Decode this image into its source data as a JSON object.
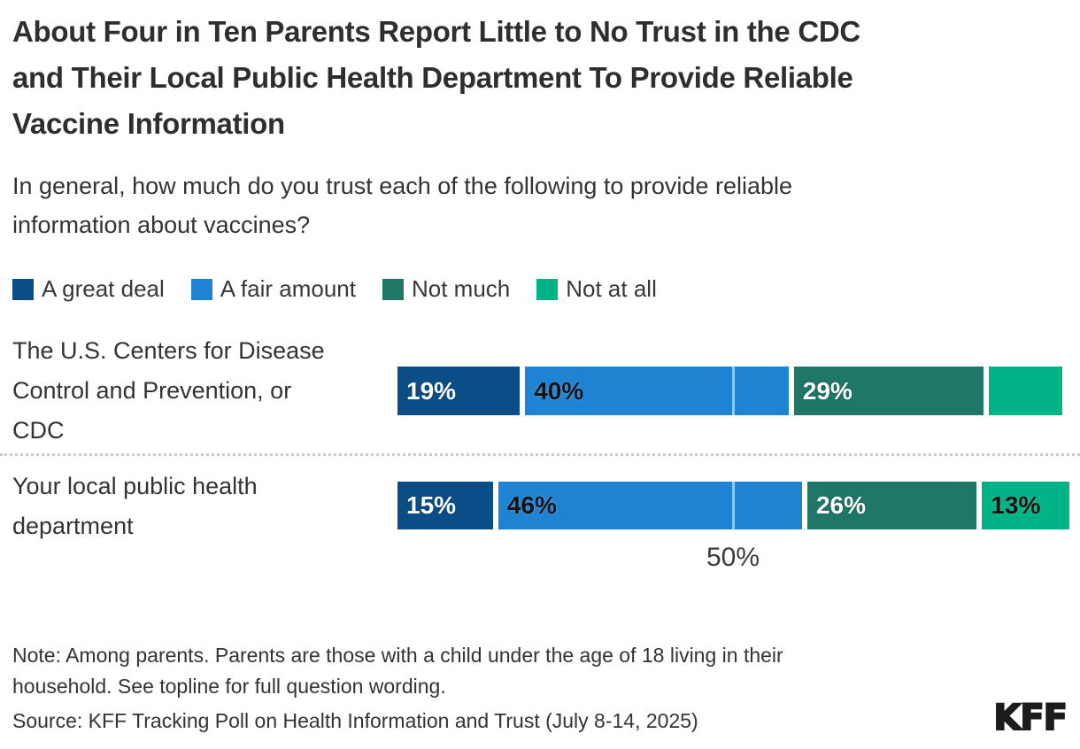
{
  "header": {
    "title": "About Four in Ten Parents Report Little to No Trust in the CDC\nand Their Local Public Health Department To Provide Reliable\nVaccine Information",
    "subtitle": "In general, how much do you trust each of the following to provide reliable\ninformation about vaccines?"
  },
  "chart_data": {
    "type": "bar",
    "stacked": true,
    "orientation": "horizontal",
    "categories": [
      "The U.S. Centers for Disease Control and Prevention, or CDC",
      "Your local public health department"
    ],
    "series": [
      {
        "name": "A great deal",
        "color": "#0b4e87",
        "values": [
          19,
          15
        ]
      },
      {
        "name": "A fair amount",
        "color": "#1f83d4",
        "values": [
          40,
          46
        ]
      },
      {
        "name": "Not much",
        "color": "#1e7767",
        "values": [
          29,
          26
        ]
      },
      {
        "name": "Not at all",
        "color": "#00b386",
        "values": [
          11,
          13
        ]
      }
    ],
    "data_labels": [
      [
        "19%",
        "40%",
        "29%",
        ""
      ],
      [
        "15%",
        "46%",
        "26%",
        "13%"
      ]
    ],
    "xlim": [
      0,
      100
    ],
    "axis_tick_label": "50%",
    "gridline_at_percent": 50,
    "legend_position": "top",
    "grid": "single 50% gridline over bars, dotted row separator"
  },
  "rows": [
    {
      "label_lines": "The U.S. Centers for Disease\nControl and Prevention, or\nCDC"
    },
    {
      "label_lines": "Your local public health\ndepartment"
    }
  ],
  "footer": {
    "note": "Note: Among parents. Parents are those with a child under the age of 18 living in their\nhousehold. See topline for full question wording.",
    "source": "Source: KFF Tracking Poll on Health Information and Trust (July 8-14, 2025)",
    "logo_text": "KFF"
  }
}
